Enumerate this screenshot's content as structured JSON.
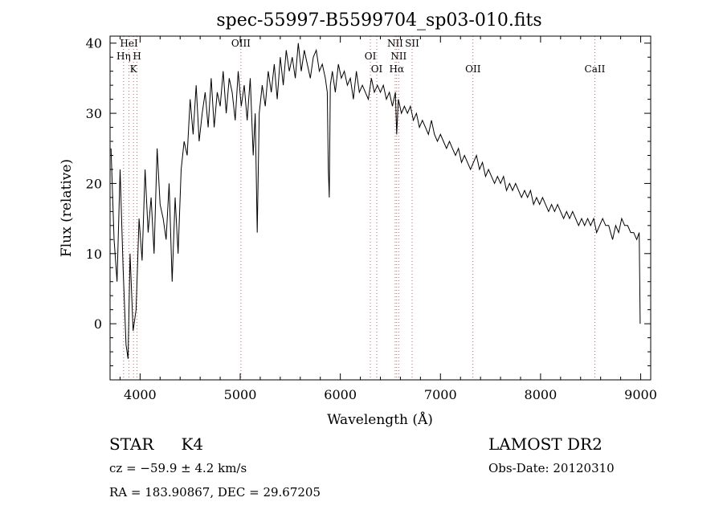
{
  "title": "spec-55997-B5599704_sp03-010.fits",
  "chart_data": {
    "type": "line",
    "title": "spec-55997-B5599704_sp03-010.fits",
    "xlabel": "Wavelength (Å)",
    "ylabel": "Flux (relative)",
    "xlim": [
      3700,
      9100
    ],
    "ylim": [
      -8,
      41
    ],
    "xticks": [
      4000,
      5000,
      6000,
      7000,
      8000,
      9000
    ],
    "yticks": [
      0,
      10,
      20,
      30,
      40
    ],
    "grid": false,
    "series": [
      {
        "x": [
          3710,
          3740,
          3770,
          3800,
          3830,
          3860,
          3880,
          3900,
          3930,
          3960,
          3990,
          4020,
          4050,
          4080,
          4110,
          4140,
          4170,
          4200,
          4230,
          4260,
          4290,
          4320,
          4350,
          4380,
          4410,
          4440,
          4470,
          4500,
          4530,
          4560,
          4590,
          4620,
          4650,
          4680,
          4710,
          4740,
          4770,
          4800,
          4830,
          4860,
          4890,
          4920,
          4950,
          4980,
          5010,
          5040,
          5070,
          5100,
          5130,
          5150,
          5170,
          5190,
          5220,
          5250,
          5280,
          5310,
          5340,
          5370,
          5400,
          5430,
          5460,
          5490,
          5520,
          5550,
          5580,
          5610,
          5640,
          5670,
          5700,
          5730,
          5760,
          5790,
          5820,
          5850,
          5870,
          5880,
          5890,
          5900,
          5920,
          5950,
          5980,
          6010,
          6040,
          6070,
          6100,
          6130,
          6160,
          6190,
          6220,
          6250,
          6280,
          6310,
          6340,
          6370,
          6400,
          6430,
          6460,
          6490,
          6520,
          6550,
          6563,
          6580,
          6610,
          6640,
          6670,
          6700,
          6730,
          6760,
          6790,
          6820,
          6850,
          6880,
          6910,
          6940,
          6970,
          7000,
          7030,
          7060,
          7090,
          7120,
          7150,
          7180,
          7210,
          7240,
          7270,
          7300,
          7330,
          7360,
          7390,
          7420,
          7450,
          7480,
          7510,
          7540,
          7570,
          7600,
          7630,
          7660,
          7690,
          7720,
          7750,
          7780,
          7810,
          7840,
          7870,
          7900,
          7930,
          7960,
          7990,
          8020,
          8050,
          8080,
          8110,
          8140,
          8170,
          8200,
          8230,
          8260,
          8290,
          8320,
          8350,
          8380,
          8410,
          8440,
          8470,
          8500,
          8530,
          8560,
          8590,
          8620,
          8650,
          8680,
          8700,
          8720,
          8750,
          8780,
          8810,
          8840,
          8870,
          8900,
          8930,
          8960,
          8985,
          8995
        ],
        "y": [
          25,
          12,
          6,
          22,
          8,
          -3,
          -5,
          10,
          -1,
          2,
          15,
          9,
          22,
          13,
          18,
          10,
          25,
          17,
          15,
          12,
          20,
          6,
          18,
          10,
          22,
          26,
          24,
          32,
          27,
          34,
          26,
          30,
          33,
          28,
          35,
          28,
          33,
          31,
          36,
          30,
          35,
          33,
          29,
          36,
          31,
          34,
          29,
          35,
          24,
          30,
          13,
          30,
          34,
          31,
          36,
          33,
          37,
          32,
          38,
          34,
          39,
          36,
          38,
          35,
          40,
          36,
          39,
          37,
          35,
          38,
          39,
          36,
          37,
          35,
          33,
          22,
          18,
          34,
          36,
          33,
          37,
          35,
          36,
          34,
          35,
          32,
          36,
          33,
          34,
          33,
          32,
          35,
          33,
          34,
          33,
          34,
          32,
          33,
          31,
          33,
          27,
          32,
          30,
          31,
          30,
          31,
          29,
          30,
          28,
          29,
          28,
          27,
          29,
          27,
          26,
          27,
          26,
          25,
          26,
          25,
          24,
          25,
          23,
          24,
          23,
          22,
          23,
          24,
          22,
          23,
          21,
          22,
          21,
          20,
          21,
          20,
          21,
          19,
          20,
          19,
          20,
          19,
          18,
          19,
          18,
          19,
          17,
          18,
          17,
          18,
          17,
          16,
          17,
          16,
          17,
          16,
          15,
          16,
          15,
          16,
          15,
          14,
          15,
          14,
          15,
          14,
          15,
          13,
          14,
          15,
          14,
          14,
          13,
          12,
          14,
          13,
          15,
          14,
          14,
          13,
          13,
          12,
          13,
          0
        ]
      }
    ],
    "line_markers": [
      {
        "wl": 3889,
        "label": "HeI"
      },
      {
        "wl": 3835,
        "label": "Hη"
      },
      {
        "wl": 3970,
        "label": "H"
      },
      {
        "wl": 3934,
        "label": "K"
      },
      {
        "wl": 5007,
        "label": "OIII"
      },
      {
        "wl": 6300,
        "label": "OI"
      },
      {
        "wl": 6364,
        "label": "OI"
      },
      {
        "wl": 6548,
        "label": "NII"
      },
      {
        "wl": 6583,
        "label": "NII"
      },
      {
        "wl": 6563,
        "label": "Hα"
      },
      {
        "wl": 6717,
        "label": "SII"
      },
      {
        "wl": 7325,
        "label": "OII"
      },
      {
        "wl": 8542,
        "label": "CaII"
      }
    ]
  },
  "footer": {
    "object_class": "STAR",
    "subclass": "K4",
    "cz": "cz = −59.9 ± 4.2 km/s",
    "coords": "RA = 183.90867, DEC =  29.67205",
    "survey": "LAMOST DR2",
    "obs_date": "Obs-Date: 20120310"
  }
}
